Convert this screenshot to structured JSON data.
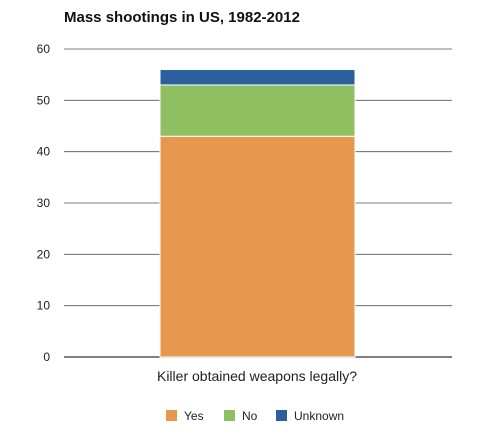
{
  "chart_data": {
    "type": "bar",
    "stacked": true,
    "title": "Mass shootings in US, 1982-2012",
    "xlabel": "Killer obtained weapons legally?",
    "ylabel": "",
    "ylim": [
      0,
      60
    ],
    "yticks": [
      0,
      10,
      20,
      30,
      40,
      50,
      60
    ],
    "grid": true,
    "legend_position": "bottom",
    "categories": [
      ""
    ],
    "series": [
      {
        "name": "Yes",
        "values": [
          43
        ],
        "color": "#e8984e"
      },
      {
        "name": "No",
        "values": [
          10
        ],
        "color": "#8fbf61"
      },
      {
        "name": "Unknown",
        "values": [
          3
        ],
        "color": "#2b5f9e"
      }
    ]
  }
}
